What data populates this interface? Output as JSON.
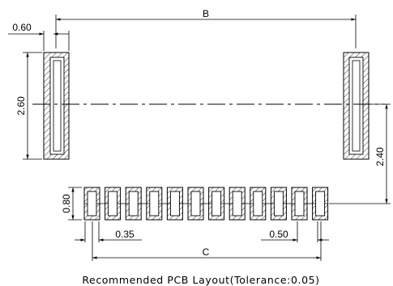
{
  "drawing": {
    "caption": "Recommended PCB Layout(Tolerance:0.05)",
    "dimensions": {
      "B": "B",
      "C": "C",
      "anchor_width": "0.60",
      "anchor_height": "2.60",
      "anchor_offset": "2.40",
      "pad_height": "0.80",
      "pad_width": "0.35",
      "pitch": "0.50"
    },
    "signal_pad_count": 12,
    "anchor_pad_count": 2
  }
}
